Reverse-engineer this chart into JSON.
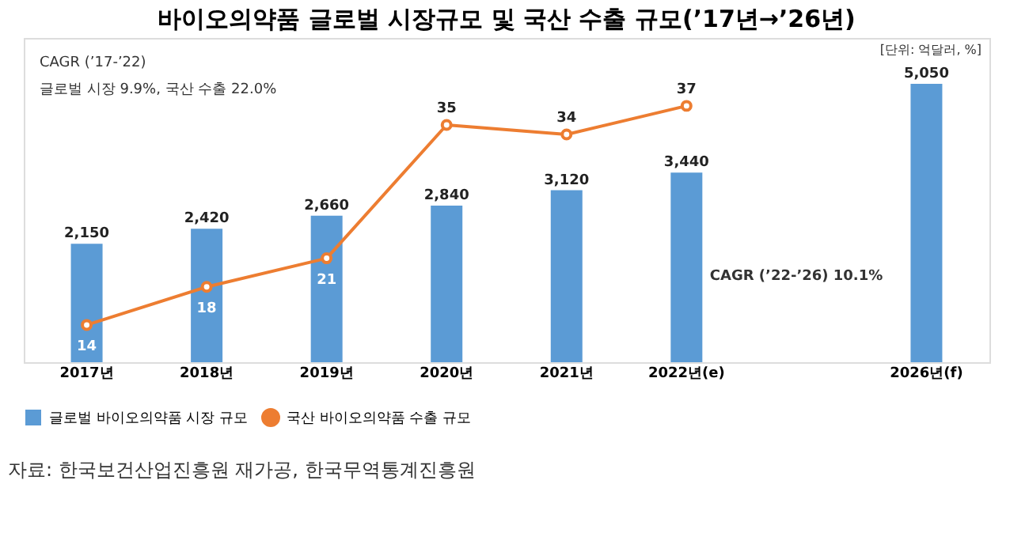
{
  "chart_data": {
    "type": "bar",
    "title": "바이오의약품 글로벌 시장규모 및 국산 수출 규모(’17년→’26년)",
    "categories": [
      "2017년",
      "2018년",
      "2019년",
      "2020년",
      "2021년",
      "2022년(e)",
      null,
      "2026년(f)"
    ],
    "series": [
      {
        "name": "글로벌 바이오의약품 시장 규모",
        "color": "#5b9bd5",
        "values": [
          2150,
          2420,
          2660,
          2840,
          3120,
          3440,
          null,
          5050
        ],
        "value_labels": [
          "2,150",
          "2,420",
          "2,660",
          "2,840",
          "3,120",
          "3,440",
          null,
          "5,050"
        ]
      },
      {
        "name": "국산 바이오의약품 수출 규모",
        "type": "line",
        "axis": "y2",
        "color": "#ed7d31",
        "marker": "circle",
        "values": [
          14,
          18,
          21,
          35,
          34,
          37,
          null,
          null
        ]
      }
    ],
    "data_labels": true,
    "legend": "bottom",
    "grid": false,
    "annotations": [
      "[단위: 억달러, %]",
      "CAGR (’17-’22)",
      "글로벌 시장 9.9%, 국산 수출 22.0%",
      "CAGR (’22-’26) 10.1%",
      "자료: 한국보건산업진흥원 재가공, 한국무역통계진흥원"
    ]
  }
}
